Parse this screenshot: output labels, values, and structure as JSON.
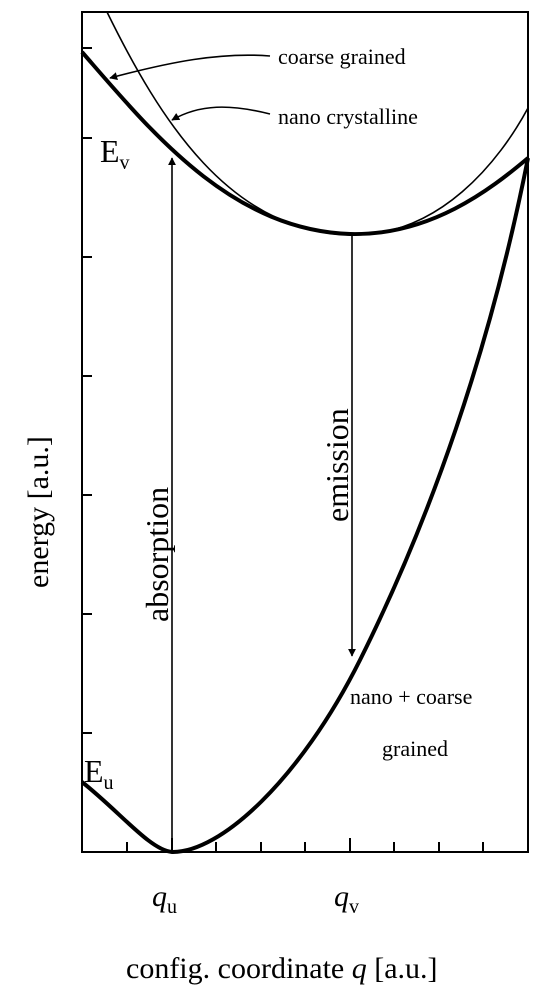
{
  "axes": {
    "ylabel": "energy [a.u.]",
    "xlabel_prefix": "config. coordinate ",
    "xlabel_var": "q",
    "xlabel_suffix": " [a.u.]",
    "xtick_var": "q",
    "xtick_u_sub": "u",
    "xtick_v_sub": "v"
  },
  "levels": {
    "ev_main": "E",
    "ev_sub": "v",
    "eu_main": "E",
    "eu_sub": "u"
  },
  "labels": {
    "coarse_grained": "coarse grained",
    "nano_crystalline": "nano crystalline",
    "ground_line1": "nano + coarse",
    "ground_line2": "grained",
    "absorption": "absorption",
    "emission": "emission"
  },
  "colors": {
    "ink": "#000000",
    "background": "#ffffff"
  }
}
